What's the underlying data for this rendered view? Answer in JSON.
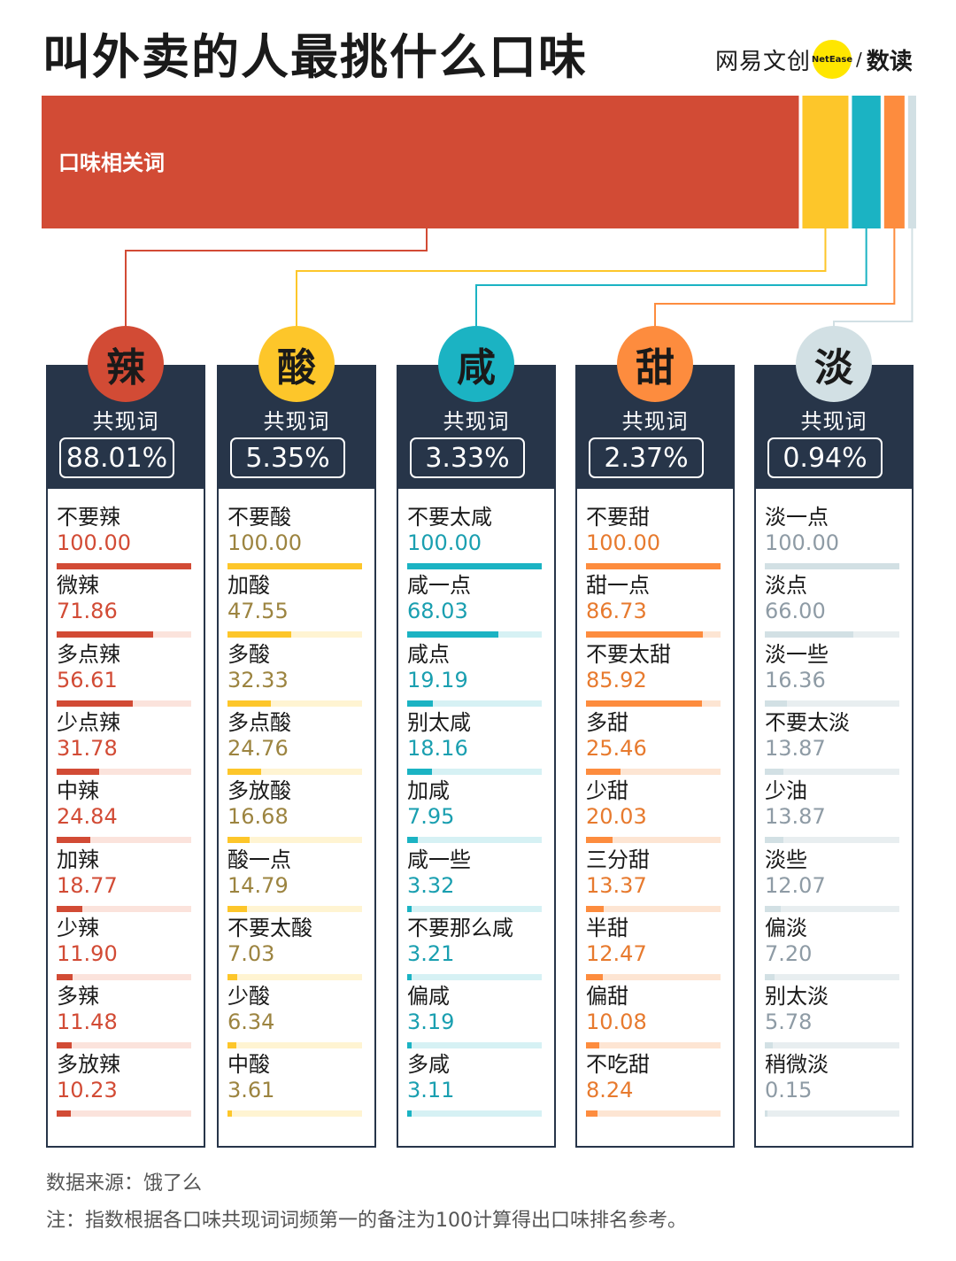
{
  "title": "叫外卖的人最挑什么口味",
  "logo": {
    "brand": "网易文创",
    "dot": "NetEase",
    "sep": "/",
    "product": "数读"
  },
  "co_label": "共现词",
  "chart_data": {
    "type": "bar",
    "top_bar_label": "口味相关词",
    "flavors": [
      {
        "name": "辣",
        "share_label": "88.01%",
        "share": 88.01,
        "color": "#d24b35",
        "value_color": "#d24b35",
        "track_color": "#fbe3dc",
        "items": [
          {
            "label": "不要辣",
            "value": 100.0,
            "value_label": "100.00"
          },
          {
            "label": "微辣",
            "value": 71.86,
            "value_label": "71.86"
          },
          {
            "label": "多点辣",
            "value": 56.61,
            "value_label": "56.61"
          },
          {
            "label": "少点辣",
            "value": 31.78,
            "value_label": "31.78"
          },
          {
            "label": "中辣",
            "value": 24.84,
            "value_label": "24.84"
          },
          {
            "label": "加辣",
            "value": 18.77,
            "value_label": "18.77"
          },
          {
            "label": "少辣",
            "value": 11.9,
            "value_label": "11.90"
          },
          {
            "label": "多辣",
            "value": 11.48,
            "value_label": "11.48"
          },
          {
            "label": "多放辣",
            "value": 10.23,
            "value_label": "10.23"
          }
        ]
      },
      {
        "name": "酸",
        "share_label": "5.35%",
        "share": 5.35,
        "color": "#fdc62a",
        "value_color": "#9c8440",
        "track_color": "#fff4d2",
        "items": [
          {
            "label": "不要酸",
            "value": 100.0,
            "value_label": "100.00"
          },
          {
            "label": "加酸",
            "value": 47.55,
            "value_label": "47.55"
          },
          {
            "label": "多酸",
            "value": 32.33,
            "value_label": "32.33"
          },
          {
            "label": "多点酸",
            "value": 24.76,
            "value_label": "24.76"
          },
          {
            "label": "多放酸",
            "value": 16.68,
            "value_label": "16.68"
          },
          {
            "label": "酸一点",
            "value": 14.79,
            "value_label": "14.79"
          },
          {
            "label": "不要太酸",
            "value": 7.03,
            "value_label": "7.03"
          },
          {
            "label": "少酸",
            "value": 6.34,
            "value_label": "6.34"
          },
          {
            "label": "中酸",
            "value": 3.61,
            "value_label": "3.61"
          }
        ]
      },
      {
        "name": "咸",
        "share_label": "3.33%",
        "share": 3.33,
        "color": "#1bb3c3",
        "value_color": "#1a9fb0",
        "track_color": "#d6f1f4",
        "items": [
          {
            "label": "不要太咸",
            "value": 100.0,
            "value_label": "100.00"
          },
          {
            "label": "咸一点",
            "value": 68.03,
            "value_label": "68.03"
          },
          {
            "label": "咸点",
            "value": 19.19,
            "value_label": "19.19"
          },
          {
            "label": "别太咸",
            "value": 18.16,
            "value_label": "18.16"
          },
          {
            "label": "加咸",
            "value": 7.95,
            "value_label": "7.95"
          },
          {
            "label": "咸一些",
            "value": 3.32,
            "value_label": "3.32"
          },
          {
            "label": "不要那么咸",
            "value": 3.21,
            "value_label": "3.21"
          },
          {
            "label": "偏咸",
            "value": 3.19,
            "value_label": "3.19"
          },
          {
            "label": "多咸",
            "value": 3.11,
            "value_label": "3.11"
          }
        ]
      },
      {
        "name": "甜",
        "share_label": "2.37%",
        "share": 2.37,
        "color": "#fd8c3e",
        "value_color": "#e77a2e",
        "track_color": "#fde5d3",
        "items": [
          {
            "label": "不要甜",
            "value": 100.0,
            "value_label": "100.00"
          },
          {
            "label": "甜一点",
            "value": 86.73,
            "value_label": "86.73"
          },
          {
            "label": "不要太甜",
            "value": 85.92,
            "value_label": "85.92"
          },
          {
            "label": "多甜",
            "value": 25.46,
            "value_label": "25.46"
          },
          {
            "label": "少甜",
            "value": 20.03,
            "value_label": "20.03"
          },
          {
            "label": "三分甜",
            "value": 13.37,
            "value_label": "13.37"
          },
          {
            "label": "半甜",
            "value": 12.47,
            "value_label": "12.47"
          },
          {
            "label": "偏甜",
            "value": 10.08,
            "value_label": "10.08"
          },
          {
            "label": "不吃甜",
            "value": 8.24,
            "value_label": "8.24"
          }
        ]
      },
      {
        "name": "淡",
        "share_label": "0.94%",
        "share": 0.94,
        "color": "#d2e0e4",
        "value_color": "#8e9ba5",
        "track_color": "#e8eef0",
        "items": [
          {
            "label": "淡一点",
            "value": 100.0,
            "value_label": "100.00"
          },
          {
            "label": "淡点",
            "value": 66.0,
            "value_label": "66.00"
          },
          {
            "label": "淡一些",
            "value": 16.36,
            "value_label": "16.36"
          },
          {
            "label": "不要太淡",
            "value": 13.87,
            "value_label": "13.87"
          },
          {
            "label": "少油",
            "value": 13.87,
            "value_label": "13.87"
          },
          {
            "label": "淡些",
            "value": 12.07,
            "value_label": "12.07"
          },
          {
            "label": "偏淡",
            "value": 7.2,
            "value_label": "7.20"
          },
          {
            "label": "别太淡",
            "value": 5.78,
            "value_label": "5.78"
          },
          {
            "label": "稍微淡",
            "value": 0.15,
            "value_label": "0.15"
          }
        ]
      }
    ]
  },
  "footer": {
    "source": "数据来源：饿了么",
    "note": "注：指数根据各口味共现词词频第一的备注为100计算得出口味排名参考。"
  }
}
